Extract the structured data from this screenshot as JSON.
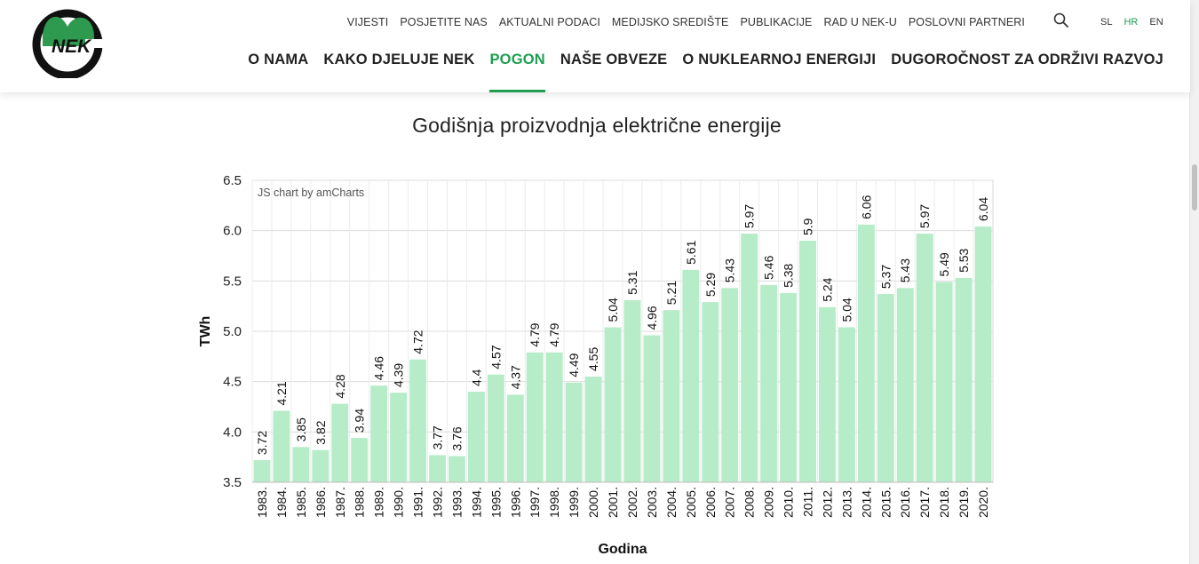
{
  "logo": {
    "text": "NEK"
  },
  "top_nav": [
    "VIJESTI",
    "POSJETITE NAS",
    "AKTUALNI PODACI",
    "MEDIJSKO SREDIŠTE",
    "PUBLIKACIJE",
    "RAD U NEK-U",
    "POSLOVNI PARTNERI"
  ],
  "languages": [
    "SL",
    "HR",
    "EN"
  ],
  "active_language": "HR",
  "main_nav": [
    "O NAMA",
    "KAKO DJELUJE NEK",
    "POGON",
    "NAŠE OBVEZE",
    "O NUKLEARNOJ ENERGIJI",
    "DUGOROČNOST ZA ODRŽIVI RAZVOJ"
  ],
  "active_main_nav": "POGON",
  "colors": {
    "accent": "#1f9e52",
    "bar": "#b6ecc8",
    "logo_green": "#2e9a4f"
  },
  "chart_data": {
    "type": "bar",
    "title": "Godišnja proizvodnja električne energije",
    "credit": "JS chart by amCharts",
    "xlabel": "Godina",
    "ylabel": "TWh",
    "ylim": [
      3.5,
      6.5
    ],
    "yticks": [
      "3.5",
      "4.0",
      "4.5",
      "5.0",
      "5.5",
      "6.0",
      "6.5"
    ],
    "categories": [
      "1983.",
      "1984.",
      "1985.",
      "1986.",
      "1987.",
      "1988.",
      "1989.",
      "1990.",
      "1991.",
      "1992.",
      "1993.",
      "1994.",
      "1995.",
      "1996.",
      "1997.",
      "1998.",
      "1999.",
      "2000.",
      "2001.",
      "2002.",
      "2003.",
      "2004.",
      "2005.",
      "2006.",
      "2007.",
      "2008.",
      "2009.",
      "2010.",
      "2011.",
      "2012.",
      "2013.",
      "2014.",
      "2015.",
      "2016.",
      "2017.",
      "2018.",
      "2019.",
      "2020."
    ],
    "values": [
      3.72,
      4.21,
      3.85,
      3.82,
      4.28,
      3.94,
      4.46,
      4.39,
      4.72,
      3.77,
      3.76,
      4.4,
      4.57,
      4.37,
      4.79,
      4.79,
      4.49,
      4.55,
      5.04,
      5.31,
      4.96,
      5.21,
      5.61,
      5.29,
      5.43,
      5.97,
      5.46,
      5.38,
      5.9,
      5.24,
      5.04,
      6.06,
      5.37,
      5.43,
      5.97,
      5.49,
      5.53,
      6.04
    ],
    "grid": true
  }
}
